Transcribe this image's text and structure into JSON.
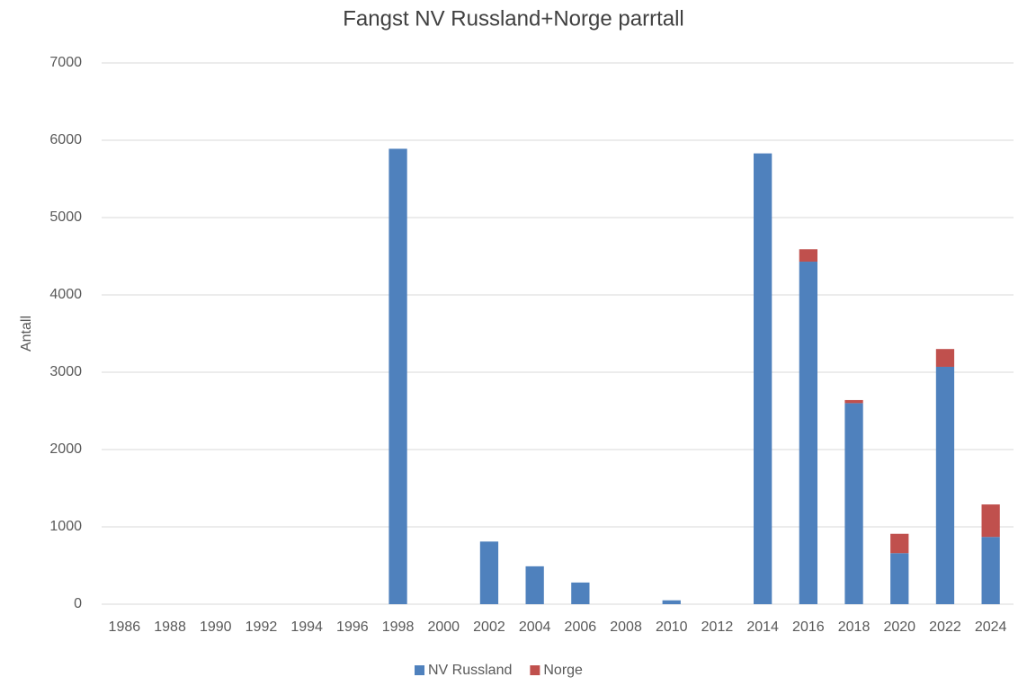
{
  "chart_data": {
    "type": "stacked_bar",
    "title": "Fangst NV Russland+Norge parrtall",
    "y_label": "Antall",
    "categories": [
      "1986",
      "1988",
      "1990",
      "1992",
      "1994",
      "1996",
      "1998",
      "2000",
      "2002",
      "2004",
      "2006",
      "2008",
      "2010",
      "2012",
      "2014",
      "2016",
      "2018",
      "2020",
      "2022",
      "2024"
    ],
    "series": [
      {
        "name": "NV Russland",
        "color": "#4f81bd",
        "values": [
          0,
          0,
          0,
          0,
          0,
          0,
          5890,
          0,
          810,
          490,
          280,
          0,
          50,
          0,
          5830,
          4430,
          2600,
          660,
          3070,
          870
        ]
      },
      {
        "name": "Norge",
        "color": "#c0504d",
        "values": [
          0,
          0,
          0,
          0,
          0,
          0,
          0,
          0,
          0,
          0,
          0,
          0,
          0,
          0,
          0,
          160,
          40,
          250,
          230,
          420
        ]
      }
    ],
    "ylim": [
      0,
      7000
    ],
    "yticks": [
      0,
      1000,
      2000,
      3000,
      4000,
      5000,
      6000,
      7000
    ],
    "grid": true,
    "legend": "bottom"
  }
}
